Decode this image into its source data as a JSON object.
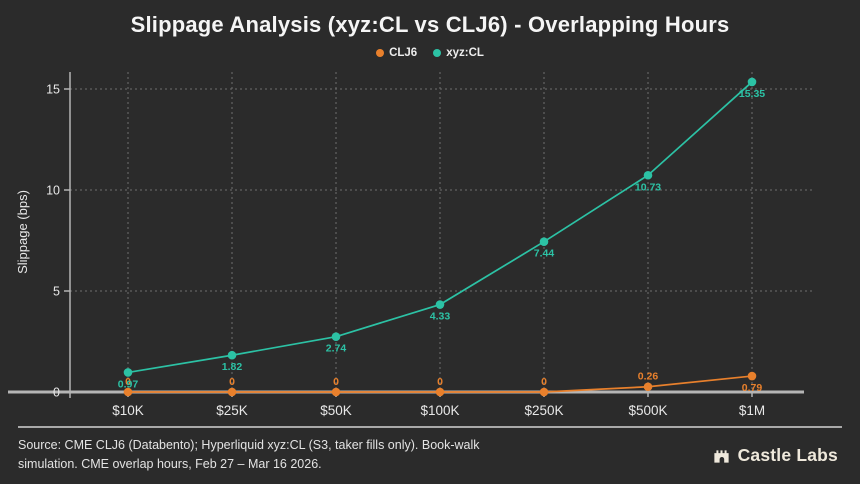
{
  "title": "Slippage Analysis (xyz:CL vs CLJ6) - Overlapping Hours",
  "legend": [
    {
      "label": "CLJ6",
      "color": "#e8802c"
    },
    {
      "label": "xyz:CL",
      "color": "#2cc2a5"
    }
  ],
  "chart_data": {
    "type": "line",
    "title": "Slippage Analysis (xyz:CL vs CLJ6) - Overlapping Hours",
    "categories": [
      "$10K",
      "$25K",
      "$50K",
      "$100K",
      "$250K",
      "$500K",
      "$1M"
    ],
    "series": [
      {
        "name": "CLJ6",
        "color": "#e8802c",
        "values": [
          0,
          0,
          0,
          0,
          0,
          0.26,
          0.79
        ],
        "value_labels": [
          "0",
          "0",
          "0",
          "0",
          "0",
          "0.26",
          "0.79"
        ],
        "label_side": [
          "above",
          "above",
          "above",
          "above",
          "above",
          "above",
          "below"
        ]
      },
      {
        "name": "xyz:CL",
        "color": "#2cc2a5",
        "values": [
          0.97,
          1.82,
          2.74,
          4.33,
          7.44,
          10.73,
          15.35
        ],
        "value_labels": [
          "0.97",
          "1.82",
          "2.74",
          "4.33",
          "7.44",
          "10.73",
          "15.35"
        ],
        "label_side": [
          "below",
          "below",
          "below",
          "below",
          "below",
          "below",
          "below"
        ]
      }
    ],
    "xlabel": "",
    "ylabel": "Slippage (bps)",
    "yticks": [
      0,
      5,
      10,
      15
    ],
    "ylim": [
      0,
      15.5
    ],
    "grid": "dashed",
    "legend_position": "top-center"
  },
  "footer": {
    "source_text": "Source: CME CLJ6 (Databento); Hyperliquid xyz:CL (S3, taker fills only). Book-walk simulation. CME overlap hours, Feb 27 – Mar 16 2026.",
    "brand": "Castle Labs"
  },
  "colors": {
    "background": "#2b2b2b",
    "text": "#f2f2f2",
    "grid": "#6f6f6f",
    "axis": "#b5b5b5",
    "tick_text": "#e8e8e8",
    "brand": "#efe9dc"
  }
}
